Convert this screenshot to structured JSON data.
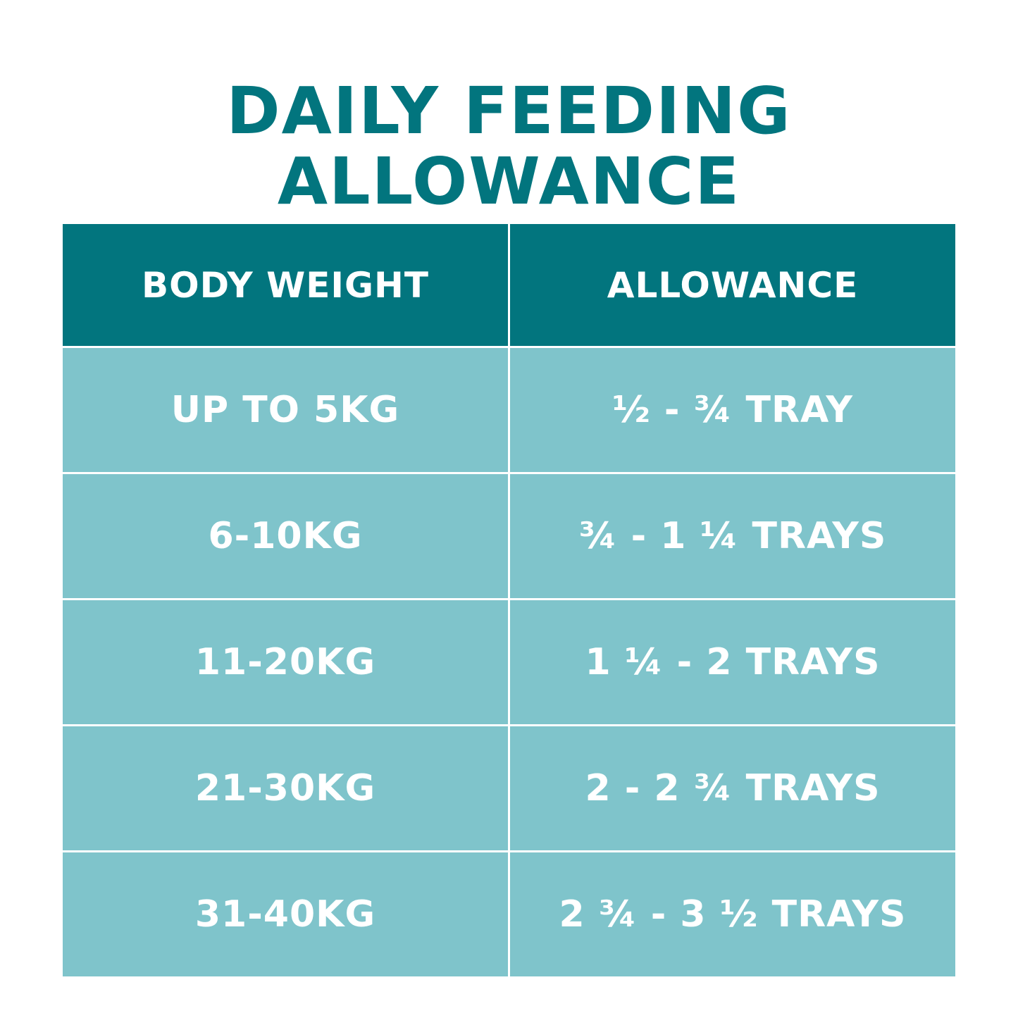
{
  "title": "DAILY FEEDING ALLOWANCE",
  "colors": {
    "title": "#02757e",
    "header_bg": "#02757e",
    "row_bg": "#7fc4cb",
    "text": "#ffffff"
  },
  "table": {
    "headers": [
      "BODY WEIGHT",
      "ALLOWANCE"
    ],
    "rows": [
      [
        "UP TO 5KG",
        "½ - ¾ TRAY"
      ],
      [
        "6-10KG",
        "¾ - 1 ¼ TRAYS"
      ],
      [
        "11-20KG",
        "1 ¼ - 2 TRAYS"
      ],
      [
        "21-30KG",
        "2 - 2 ¾ TRAYS"
      ],
      [
        "31-40KG",
        "2 ¾ - 3 ½ TRAYS"
      ]
    ]
  }
}
